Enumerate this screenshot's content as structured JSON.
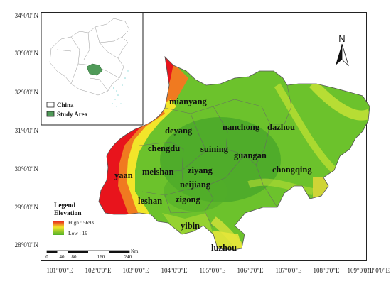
{
  "map": {
    "lat_labels": [
      "34°0'0\"N",
      "33°0'0\"N",
      "32°0'0\"N",
      "31°0'0\"N",
      "30°0'0\"N",
      "29°0'0\"N",
      "28°0'0\"N"
    ],
    "lon_labels": [
      "101°0'0\"E",
      "102°0'0\"E",
      "103°0'0\"E",
      "104°0'0\"E",
      "105°0'0\"E",
      "106°0'0\"E",
      "107°0'0\"E",
      "108°0'0\"E",
      "109°0'0\"E",
      "110°0'0\"E"
    ],
    "cities": {
      "mianyang": "mianyang",
      "deyang": "deyang",
      "nanchong": "nanchong",
      "dazhou": "dazhou",
      "chengdu": "chengdu",
      "suining": "suining",
      "guangan": "guangan",
      "chongqing": "chongqing",
      "yaan": "yaan",
      "meishan": "meishan",
      "ziyang": "ziyang",
      "neijiang": "neijiang",
      "leshan": "leshan",
      "zigong": "zigong",
      "yibin": "yibin",
      "luzhou": "luzhou"
    },
    "north_arrow": "N",
    "legend": {
      "title": "Legend",
      "subtitle": "Elevation",
      "high": "High : 5693",
      "low": "Low : 19"
    },
    "inset": {
      "china_label": "China",
      "study_label": "Study Area"
    },
    "scale": {
      "ticks": [
        "0",
        "40",
        "80",
        "160",
        "240"
      ],
      "unit": "Km"
    },
    "colors": {
      "high": "#e8141c",
      "mid_high": "#f07a20",
      "mid": "#f2e52a",
      "low": "#66c22a",
      "lowest": "#3f9e2a",
      "study_area": "#4f9a58"
    }
  }
}
